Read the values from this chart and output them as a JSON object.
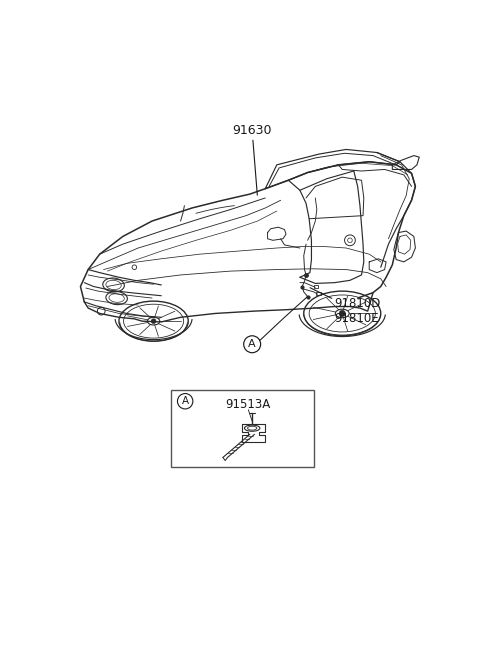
{
  "bg_color": "#ffffff",
  "fig_width": 4.8,
  "fig_height": 6.55,
  "dpi": 100,
  "labels": {
    "part1": "91630",
    "part2": "91810D\n91810E",
    "part3": "91513A",
    "callout_A": "A"
  },
  "car_color": "#2a2a2a",
  "annotation_color": "#1a1a1a",
  "box_color": "#444444",
  "car_lw": 0.9,
  "detail_lw": 0.7
}
